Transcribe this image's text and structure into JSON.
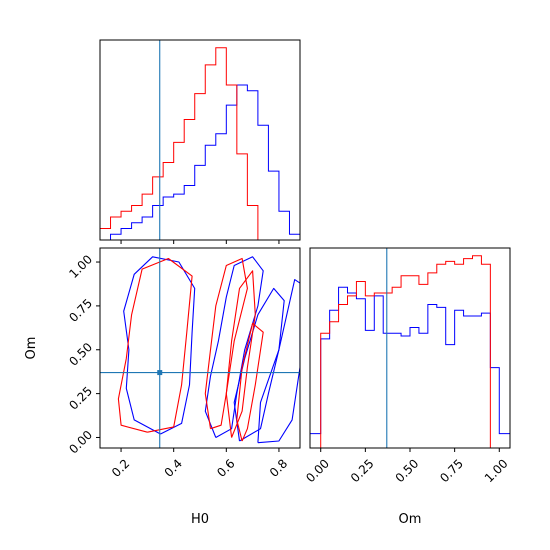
{
  "chart_data": [
    {
      "panel": "H0 marginal histogram",
      "type": "histogram",
      "xlim": [
        0.12,
        0.88
      ],
      "truth": 0.347,
      "bin_edges": [
        0.12,
        0.16,
        0.2,
        0.24,
        0.28,
        0.32,
        0.36,
        0.4,
        0.44,
        0.48,
        0.52,
        0.56,
        0.6,
        0.64,
        0.68,
        0.72,
        0.76,
        0.8,
        0.84,
        0.88
      ],
      "series": [
        {
          "name": "",
          "color": "#0000ff",
          "counts": [
            0,
            2,
            4,
            6,
            8,
            12,
            15,
            16,
            19,
            26,
            33,
            37,
            47,
            54,
            52,
            40,
            24,
            10,
            2
          ]
        },
        {
          "name": "",
          "color": "#ff0000",
          "counts": [
            4,
            8,
            10,
            12,
            16,
            22,
            27,
            34,
            42,
            51,
            61,
            67,
            54,
            30,
            12,
            0,
            0,
            0,
            0
          ]
        }
      ]
    },
    {
      "panel": "Om marginal histogram",
      "type": "histogram",
      "xlim": [
        -0.06,
        1.06
      ],
      "truth": 0.37,
      "bin_edges": [
        -0.06,
        0.0,
        0.05,
        0.1,
        0.15,
        0.2,
        0.25,
        0.3,
        0.35,
        0.4,
        0.45,
        0.5,
        0.55,
        0.6,
        0.65,
        0.7,
        0.75,
        0.8,
        0.85,
        0.9,
        0.95,
        1.0,
        1.06
      ],
      "series": [
        {
          "name": "",
          "color": "#0000ff",
          "counts": [
            5,
            38,
            48,
            56,
            54,
            52,
            41,
            53,
            40,
            40,
            39,
            42,
            40,
            50,
            49,
            36,
            48,
            46,
            46,
            47,
            28,
            5
          ]
        },
        {
          "name": "",
          "color": "#ff0000",
          "counts": [
            0,
            40,
            44,
            50,
            53,
            58,
            53,
            54,
            54,
            56,
            60,
            60,
            57,
            61,
            64,
            65,
            64,
            66,
            67,
            64,
            0,
            0
          ]
        }
      ]
    },
    {
      "panel": "2D contour H0 vs Om",
      "type": "contour",
      "xlabel": "H0",
      "ylabel": "Om",
      "xlim": [
        0.12,
        0.88
      ],
      "ylim": [
        -0.06,
        1.08
      ],
      "xticks": [
        "0.2",
        "0.4",
        "0.6",
        "0.8"
      ],
      "yticks": [
        "0.00",
        "0.25",
        "0.50",
        "0.75",
        "1.00"
      ],
      "truth": [
        0.347,
        0.37
      ],
      "series": [
        {
          "name": "",
          "color": "#0000ff",
          "contours": [
            [
              [
                0.35,
                0.02
              ],
              [
                0.25,
                0.1
              ],
              [
                0.22,
                0.28
              ],
              [
                0.23,
                0.5
              ],
              [
                0.21,
                0.72
              ],
              [
                0.25,
                0.93
              ],
              [
                0.32,
                1.03
              ],
              [
                0.42,
                1.0
              ],
              [
                0.48,
                0.85
              ],
              [
                0.47,
                0.6
              ],
              [
                0.46,
                0.3
              ],
              [
                0.43,
                0.08
              ],
              [
                0.35,
                0.02
              ]
            ],
            [
              [
                0.56,
                0.0
              ],
              [
                0.52,
                0.15
              ],
              [
                0.54,
                0.35
              ],
              [
                0.57,
                0.55
              ],
              [
                0.6,
                0.8
              ],
              [
                0.63,
                0.98
              ],
              [
                0.7,
                1.03
              ],
              [
                0.74,
                0.95
              ],
              [
                0.72,
                0.75
              ],
              [
                0.67,
                0.5
              ],
              [
                0.64,
                0.25
              ],
              [
                0.62,
                0.05
              ],
              [
                0.56,
                0.0
              ]
            ],
            [
              [
                0.65,
                -0.02
              ],
              [
                0.63,
                0.2
              ],
              [
                0.67,
                0.45
              ],
              [
                0.72,
                0.7
              ],
              [
                0.78,
                0.85
              ],
              [
                0.82,
                0.78
              ],
              [
                0.8,
                0.5
              ],
              [
                0.76,
                0.25
              ],
              [
                0.73,
                0.05
              ],
              [
                0.65,
                -0.02
              ]
            ],
            [
              [
                0.72,
                -0.03
              ],
              [
                0.73,
                0.2
              ],
              [
                0.8,
                0.5
              ],
              [
                0.86,
                0.9
              ],
              [
                0.88,
                0.88
              ],
              [
                0.88,
                0.4
              ],
              [
                0.85,
                0.1
              ],
              [
                0.8,
                -0.02
              ],
              [
                0.72,
                -0.03
              ]
            ]
          ]
        },
        {
          "name": "",
          "color": "#ff0000",
          "contours": [
            [
              [
                0.3,
                0.03
              ],
              [
                0.2,
                0.07
              ],
              [
                0.19,
                0.22
              ],
              [
                0.22,
                0.45
              ],
              [
                0.24,
                0.7
              ],
              [
                0.28,
                0.96
              ],
              [
                0.38,
                1.02
              ],
              [
                0.47,
                0.92
              ],
              [
                0.45,
                0.6
              ],
              [
                0.43,
                0.3
              ],
              [
                0.4,
                0.06
              ],
              [
                0.3,
                0.03
              ]
            ],
            [
              [
                0.54,
                0.05
              ],
              [
                0.52,
                0.25
              ],
              [
                0.54,
                0.5
              ],
              [
                0.56,
                0.75
              ],
              [
                0.6,
                0.98
              ],
              [
                0.66,
                1.02
              ],
              [
                0.68,
                0.85
              ],
              [
                0.63,
                0.55
              ],
              [
                0.6,
                0.25
              ],
              [
                0.58,
                0.07
              ],
              [
                0.54,
                0.05
              ]
            ],
            [
              [
                0.62,
                0.0
              ],
              [
                0.6,
                0.25
              ],
              [
                0.62,
                0.55
              ],
              [
                0.65,
                0.85
              ],
              [
                0.7,
                0.95
              ],
              [
                0.71,
                0.7
              ],
              [
                0.68,
                0.4
              ],
              [
                0.66,
                0.15
              ],
              [
                0.62,
                0.0
              ]
            ],
            [
              [
                0.66,
                -0.02
              ],
              [
                0.64,
                0.1
              ],
              [
                0.66,
                0.4
              ],
              [
                0.7,
                0.65
              ],
              [
                0.74,
                0.6
              ],
              [
                0.71,
                0.3
              ],
              [
                0.68,
                0.05
              ],
              [
                0.66,
                -0.02
              ]
            ]
          ]
        }
      ]
    }
  ]
}
